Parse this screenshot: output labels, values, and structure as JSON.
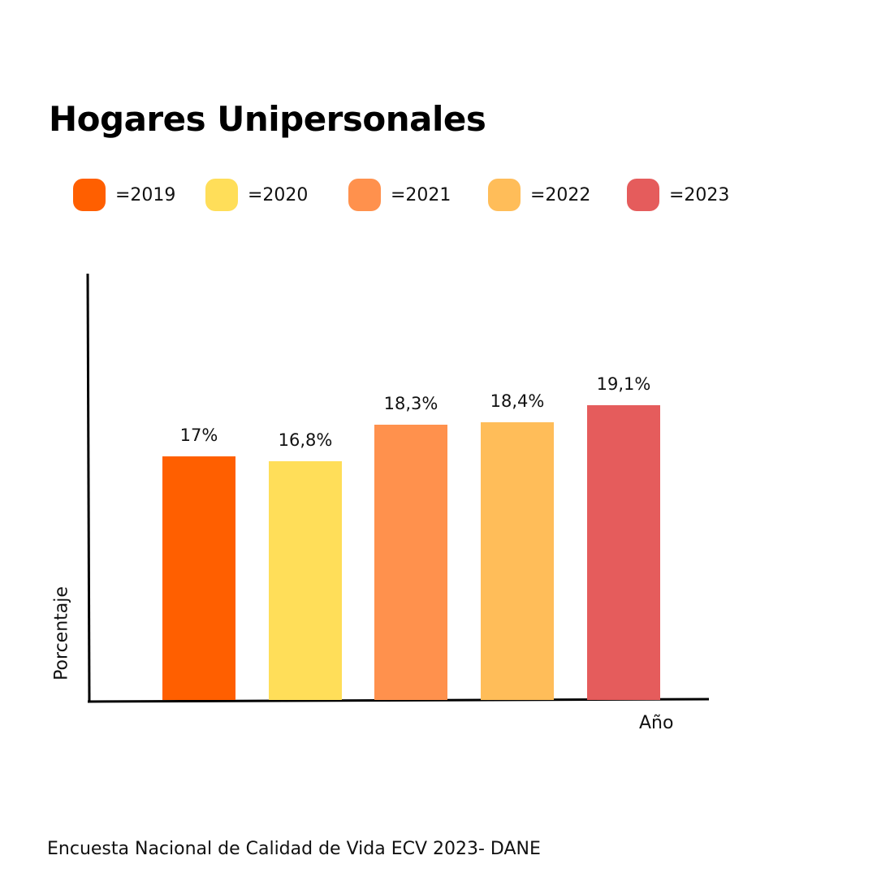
{
  "chart_data": {
    "type": "bar",
    "title": "Hogares Unipersonales",
    "categories": [
      "2019",
      "2020",
      "2021",
      "2022",
      "2023"
    ],
    "legend": [
      "=2019",
      "=2020",
      "=2021",
      "=2022",
      "=2023"
    ],
    "legend_position": "top",
    "values": [
      17,
      16.8,
      18.3,
      18.4,
      19.1
    ],
    "data_labels": [
      "17%",
      "16,8%",
      "18,3%",
      "18,4%",
      "19,1%"
    ],
    "colors": [
      "#FF5F00",
      "#FFDE59",
      "#FF914D",
      "#FFBD59",
      "#E55C5C"
    ],
    "xlabel": "Año",
    "ylabel": "Porcentaje",
    "ylim": [
      7,
      24.5
    ],
    "grid": false
  },
  "source": "Encuesta Nacional de Calidad de Vida ECV 2023- DANE"
}
